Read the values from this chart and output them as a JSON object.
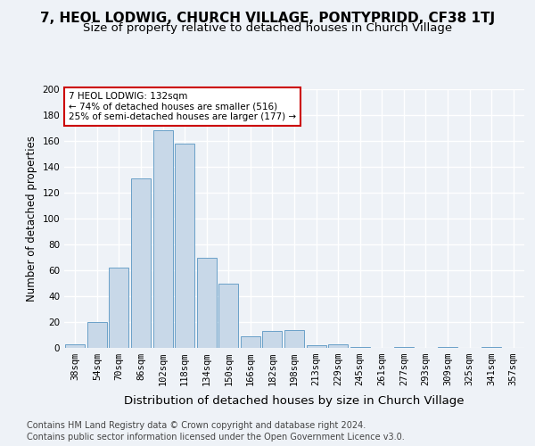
{
  "title": "7, HEOL LODWIG, CHURCH VILLAGE, PONTYPRIDD, CF38 1TJ",
  "subtitle": "Size of property relative to detached houses in Church Village",
  "xlabel": "Distribution of detached houses by size in Church Village",
  "ylabel": "Number of detached properties",
  "bar_color": "#c8d8e8",
  "bar_edge_color": "#6aa0c8",
  "categories": [
    "38sqm",
    "54sqm",
    "70sqm",
    "86sqm",
    "102sqm",
    "118sqm",
    "134sqm",
    "150sqm",
    "166sqm",
    "182sqm",
    "198sqm",
    "213sqm",
    "229sqm",
    "245sqm",
    "261sqm",
    "277sqm",
    "293sqm",
    "309sqm",
    "325sqm",
    "341sqm",
    "357sqm"
  ],
  "values": [
    3,
    20,
    62,
    131,
    168,
    158,
    70,
    50,
    9,
    13,
    14,
    2,
    3,
    1,
    0,
    1,
    0,
    1,
    0,
    1,
    0
  ],
  "annotation_box_text": "7 HEOL LODWIG: 132sqm\n← 74% of detached houses are smaller (516)\n25% of semi-detached houses are larger (177) →",
  "annotation_box_color": "#ffffff",
  "annotation_box_edge_color": "#cc0000",
  "ylim": [
    0,
    200
  ],
  "yticks": [
    0,
    20,
    40,
    60,
    80,
    100,
    120,
    140,
    160,
    180,
    200
  ],
  "footer_line1": "Contains HM Land Registry data © Crown copyright and database right 2024.",
  "footer_line2": "Contains public sector information licensed under the Open Government Licence v3.0.",
  "background_color": "#eef2f7",
  "plot_bg_color": "#eef2f7",
  "grid_color": "#ffffff",
  "title_fontsize": 11,
  "subtitle_fontsize": 9.5,
  "xlabel_fontsize": 9.5,
  "ylabel_fontsize": 8.5,
  "tick_fontsize": 7.5,
  "footer_fontsize": 7.0
}
